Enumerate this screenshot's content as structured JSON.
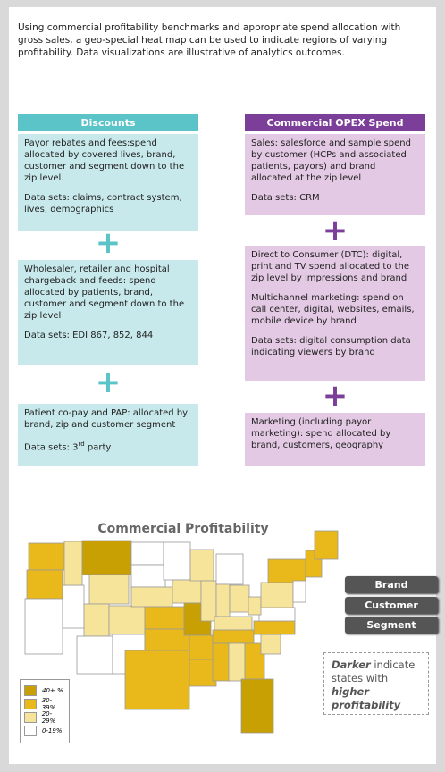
{
  "intro": "Using commercial profitability benchmarks and appropriate spend allocation with gross sales, a geo-special heat map can be used to indicate regions of varying profitability. Data visualizations are illustrative of analytics outcomes.",
  "left": {
    "header": "Discounts",
    "boxes": [
      {
        "text": "Payor rebates and fees:spend allocated by covered lives, brand, customer and segment down to the zip level.",
        "data": "Data sets:  claims, contract system, lives, demographics"
      },
      {
        "text": "Wholesaler, retailer and hospital chargeback and feeds:  spend allocated by patients, brand, customer and segment down to the zip level",
        "data": "Data sets:  EDI 867, 852, 844"
      },
      {
        "text": "Patient co-pay and PAP:  allocated by brand, zip and customer segment",
        "data_pre": "Data sets:  3",
        "data_sup": "rd",
        "data_post": " party"
      }
    ]
  },
  "right": {
    "header": "Commercial OPEX Spend",
    "boxes": [
      {
        "paragraphs": [
          "Sales:  salesforce and sample spend by customer (HCPs and associated patients, payors) and brand allocated at the zip level",
          "Data sets:  CRM"
        ]
      },
      {
        "paragraphs": [
          "Direct to Consumer (DTC):  digital, print and TV spend allocated to the zip level by impressions and brand",
          "Multichannel marketing:  spend on call center, digital, websites, emails, mobile device by brand",
          "Data sets:  digital consumption data indicating viewers by brand"
        ]
      },
      {
        "paragraphs": [
          "Marketing (including payor marketing):  spend allocated by brand, customers, geography"
        ]
      }
    ]
  },
  "map": {
    "title": "Commercial Profitability",
    "legend": [
      {
        "label": "40+ %",
        "color": "#c9a003"
      },
      {
        "label": "30-39%",
        "color": "#e9b91c"
      },
      {
        "label": "20-29%",
        "color": "#f7e49b"
      },
      {
        "label": "0-19%",
        "color": "#ffffff"
      }
    ],
    "buttons": [
      "Brand",
      "Customer",
      "Segment"
    ],
    "note": {
      "em": "Darker",
      "mid": " indicate states with ",
      "strong": "higher profitability"
    }
  }
}
